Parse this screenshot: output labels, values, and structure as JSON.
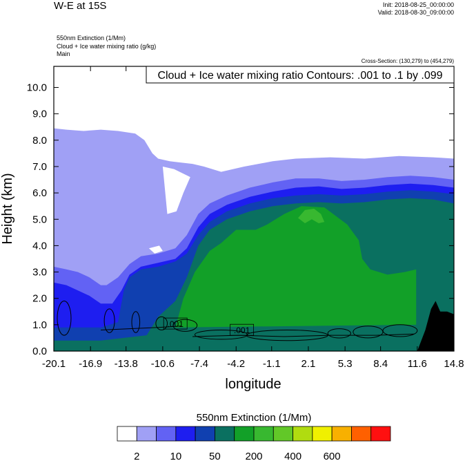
{
  "header": {
    "main_title": "W-E at 15S",
    "init": "Init: 2018-08-25_00:00:00",
    "valid": "Valid: 2018-08-30_09:00:00",
    "field1": "550nm Extinction   (1/Mm)",
    "field2": "Cloud + Ice water mixing ratio   (g/kg)",
    "field3": "Main",
    "cross_section": "Cross-Section: (130,279) to (454,279)"
  },
  "chart_data": {
    "type": "heatmap",
    "title": "W-E at 15S",
    "xlabel": "longitude",
    "ylabel": "Height (km)",
    "x_ticks": [
      "-20.1",
      "-16.9",
      "-13.8",
      "-10.6",
      "-7.4",
      "-4.2",
      "-1.1",
      "2.1",
      "5.3",
      "8.4",
      "11.6",
      "14.8"
    ],
    "y_ticks": [
      "0.0",
      "1.0",
      "2.0",
      "3.0",
      "4.0",
      "5.0",
      "6.0",
      "7.0",
      "8.0",
      "9.0",
      "10.0"
    ],
    "xlim": [
      -20.1,
      14.8
    ],
    "ylim": [
      0,
      10.8
    ],
    "contour_annotation": "Cloud + Ice water mixing ratio Contours: .001 to .1 by .099",
    "contour_labels": [
      ".001",
      ".001"
    ],
    "colorbar": {
      "label": "550nm Extinction  (1/Mm)",
      "colors": [
        "#ffffff",
        "#a0a0f5",
        "#6262f4",
        "#1e1ef0",
        "#1040b0",
        "#0a7060",
        "#12a028",
        "#38b830",
        "#62c828",
        "#b0dc10",
        "#f0f000",
        "#f8b000",
        "#ff6000",
        "#ff1010"
      ],
      "tick_labels": [
        "2",
        "10",
        "50",
        "200",
        "400",
        "600"
      ]
    },
    "series": [
      {
        "level": "1",
        "color": "#a0a0f5",
        "top": [
          [
            -20.1,
            8.45
          ],
          [
            -19.0,
            8.4
          ],
          [
            -17.5,
            8.35
          ],
          [
            -16.0,
            8.4
          ],
          [
            -14.5,
            8.35
          ],
          [
            -13.0,
            8.25
          ],
          [
            -12.2,
            8.0
          ],
          [
            -11.5,
            7.5
          ],
          [
            -11.0,
            7.3
          ],
          [
            -10.0,
            7.2
          ],
          [
            -8.0,
            7.1
          ],
          [
            -7.0,
            7.0
          ],
          [
            -5.5,
            6.8
          ],
          [
            -3.5,
            7.0
          ],
          [
            -1.0,
            7.2
          ],
          [
            1.0,
            7.3
          ],
          [
            4.0,
            7.35
          ],
          [
            7.0,
            7.3
          ],
          [
            10.0,
            7.4
          ],
          [
            13.0,
            7.35
          ],
          [
            14.8,
            7.3
          ]
        ]
      },
      {
        "level": "2",
        "color": "#6262f4",
        "top": [
          [
            -20.1,
            3.2
          ],
          [
            -19.0,
            3.1
          ],
          [
            -18.0,
            3.0
          ],
          [
            -17.0,
            2.8
          ],
          [
            -16.0,
            2.5
          ],
          [
            -15.5,
            2.5
          ],
          [
            -14.5,
            2.8
          ],
          [
            -13.5,
            3.3
          ],
          [
            -12.5,
            3.6
          ],
          [
            -11.0,
            3.7
          ],
          [
            -9.5,
            3.9
          ],
          [
            -8.5,
            4.4
          ],
          [
            -7.5,
            5.2
          ],
          [
            -6.5,
            5.6
          ],
          [
            -5.0,
            5.9
          ],
          [
            -3.0,
            6.2
          ],
          [
            -1.0,
            6.4
          ],
          [
            1.0,
            6.55
          ],
          [
            3.0,
            6.55
          ],
          [
            5.0,
            6.45
          ],
          [
            7.0,
            6.5
          ],
          [
            9.0,
            6.6
          ],
          [
            11.0,
            6.65
          ],
          [
            13.0,
            6.6
          ],
          [
            14.8,
            6.5
          ]
        ]
      },
      {
        "level": "3",
        "color": "#1e1ef0",
        "top": [
          [
            -20.1,
            2.6
          ],
          [
            -19.0,
            2.5
          ],
          [
            -18.0,
            2.3
          ],
          [
            -17.0,
            2.1
          ],
          [
            -16.0,
            1.8
          ],
          [
            -15.0,
            1.8
          ],
          [
            -14.2,
            2.3
          ],
          [
            -13.5,
            2.9
          ],
          [
            -12.5,
            3.2
          ],
          [
            -11.0,
            3.35
          ],
          [
            -9.5,
            3.5
          ],
          [
            -8.5,
            3.9
          ],
          [
            -7.5,
            4.7
          ],
          [
            -6.5,
            5.2
          ],
          [
            -5.0,
            5.55
          ],
          [
            -3.0,
            5.85
          ],
          [
            -1.0,
            6.05
          ],
          [
            1.0,
            6.2
          ],
          [
            3.0,
            6.25
          ],
          [
            5.0,
            6.15
          ],
          [
            7.0,
            6.2
          ],
          [
            9.0,
            6.3
          ],
          [
            11.0,
            6.35
          ],
          [
            13.0,
            6.3
          ],
          [
            14.8,
            6.2
          ]
        ]
      },
      {
        "level": "4",
        "color": "#1040b0",
        "top": [
          [
            -20.1,
            0.9
          ],
          [
            -18.0,
            0.9
          ],
          [
            -16.0,
            0.9
          ],
          [
            -14.5,
            1.1
          ],
          [
            -14.0,
            2.3
          ],
          [
            -13.5,
            2.8
          ],
          [
            -12.5,
            3.1
          ],
          [
            -11.0,
            3.2
          ],
          [
            -9.5,
            3.4
          ],
          [
            -8.5,
            3.7
          ],
          [
            -7.5,
            4.4
          ],
          [
            -6.5,
            4.9
          ],
          [
            -5.0,
            5.3
          ],
          [
            -3.0,
            5.6
          ],
          [
            -1.0,
            5.8
          ],
          [
            1.0,
            5.9
          ],
          [
            3.0,
            5.95
          ],
          [
            5.0,
            5.9
          ],
          [
            7.0,
            5.95
          ],
          [
            9.0,
            6.05
          ],
          [
            11.0,
            6.1
          ],
          [
            13.0,
            6.05
          ],
          [
            14.8,
            5.95
          ]
        ]
      },
      {
        "level": "5",
        "color": "#0a7060",
        "top": [
          [
            -20.1,
            0.4
          ],
          [
            -16.0,
            0.4
          ],
          [
            -14.0,
            0.5
          ],
          [
            -12.0,
            0.6
          ],
          [
            -11.0,
            1.3
          ],
          [
            -9.5,
            1.9
          ],
          [
            -8.5,
            2.8
          ],
          [
            -7.5,
            4.0
          ],
          [
            -6.5,
            4.6
          ],
          [
            -5.0,
            5.0
          ],
          [
            -3.0,
            5.3
          ],
          [
            -1.0,
            5.5
          ],
          [
            1.0,
            5.6
          ],
          [
            3.0,
            5.65
          ],
          [
            5.0,
            5.6
          ],
          [
            7.0,
            5.65
          ],
          [
            9.0,
            5.75
          ],
          [
            11.0,
            5.8
          ],
          [
            13.0,
            5.75
          ],
          [
            14.8,
            5.6
          ]
        ]
      },
      {
        "level": "6",
        "color": "#12a028",
        "top": [
          [
            -9.5,
            0.9
          ],
          [
            -8.8,
            2.0
          ],
          [
            -7.8,
            3.0
          ],
          [
            -6.5,
            3.8
          ],
          [
            -5.5,
            4.1
          ],
          [
            -4.2,
            4.6
          ],
          [
            -2.5,
            4.6
          ],
          [
            -1.5,
            4.8
          ],
          [
            0.0,
            5.2
          ],
          [
            1.5,
            5.5
          ],
          [
            3.5,
            5.45
          ],
          [
            5.5,
            4.8
          ],
          [
            6.5,
            4.2
          ],
          [
            6.8,
            3.5
          ],
          [
            7.5,
            3.1
          ],
          [
            9.0,
            2.9
          ],
          [
            10.5,
            3.0
          ],
          [
            11.5,
            3.1
          ],
          [
            11.5,
            1.0
          ],
          [
            -9.5,
            0.9
          ]
        ]
      },
      {
        "level": "7",
        "color": "#38b830",
        "top": [
          [
            1.2,
            5.05
          ],
          [
            1.8,
            5.35
          ],
          [
            2.6,
            5.4
          ],
          [
            3.2,
            5.2
          ],
          [
            3.5,
            4.9
          ],
          [
            3.0,
            4.85
          ],
          [
            2.4,
            5.0
          ],
          [
            1.8,
            4.85
          ],
          [
            1.2,
            5.05
          ]
        ]
      },
      {
        "level": "8",
        "color": "#000000",
        "top": [
          [
            11.6,
            0.0
          ],
          [
            12.3,
            0.8
          ],
          [
            12.8,
            1.6
          ],
          [
            13.2,
            1.9
          ],
          [
            13.6,
            1.5
          ],
          [
            14.2,
            1.5
          ],
          [
            14.8,
            1.4
          ],
          [
            14.8,
            0.0
          ]
        ]
      }
    ]
  }
}
